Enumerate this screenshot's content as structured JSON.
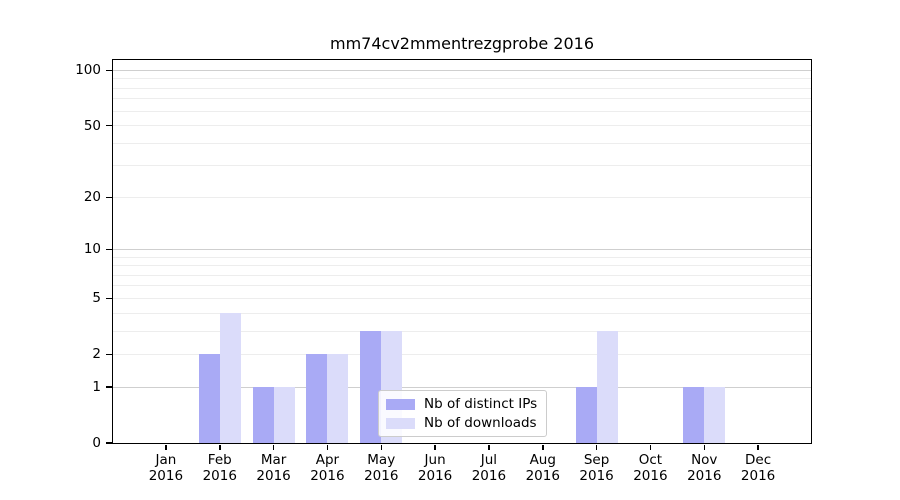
{
  "title": "mm74cv2mmentrezgprobe 2016",
  "chart_data": {
    "type": "bar",
    "title": "mm74cv2mmentrezgprobe 2016",
    "categories": [
      "Jan",
      "Feb",
      "Mar",
      "Apr",
      "May",
      "Jun",
      "Jul",
      "Aug",
      "Sep",
      "Oct",
      "Nov",
      "Dec"
    ],
    "category_year": "2016",
    "series": [
      {
        "name": "Nb of distinct IPs",
        "color": "#a9aaf5",
        "values": [
          0,
          2,
          1,
          2,
          3,
          0,
          0,
          0,
          1,
          0,
          1,
          0
        ]
      },
      {
        "name": "Nb of downloads",
        "color": "#dbdcfa",
        "values": [
          0,
          4,
          1,
          2,
          3,
          0,
          0,
          0,
          3,
          0,
          1,
          0
        ]
      }
    ],
    "xlabel": "",
    "ylabel": "",
    "y_scale": "log1p",
    "ylim": [
      0,
      114
    ],
    "y_ticks": [
      0,
      1,
      2,
      5,
      10,
      20,
      50,
      100
    ],
    "grid": {
      "on": true,
      "major_values": [
        1,
        10,
        100
      ],
      "minor_values": [
        2,
        3,
        4,
        5,
        6,
        7,
        8,
        9,
        20,
        30,
        40,
        50,
        60,
        70,
        80,
        90
      ],
      "major_color": "#cfcfcf",
      "minor_color": "#ededed"
    },
    "legend": {
      "position": "lower center",
      "entries": [
        "Nb of distinct IPs",
        "Nb of downloads"
      ]
    }
  }
}
